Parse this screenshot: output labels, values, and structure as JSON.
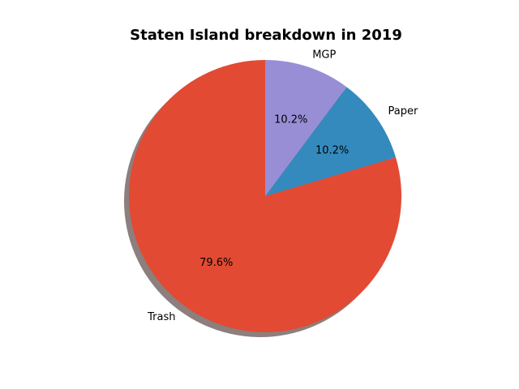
{
  "chart_data": {
    "type": "pie",
    "title": "Staten Island breakdown in 2019",
    "slices": [
      {
        "label": "Trash",
        "value": 79.6,
        "pct_label": "79.6%",
        "color": "#e24a33"
      },
      {
        "label": "Paper",
        "value": 10.2,
        "pct_label": "10.2%",
        "color": "#348abd"
      },
      {
        "label": "MGP",
        "value": 10.2,
        "pct_label": "10.2%",
        "color": "#988ed5"
      }
    ],
    "start_angle_deg": 90,
    "direction": "counterclockwise",
    "shadow": true,
    "shadow_color": "#8c7f7d"
  }
}
